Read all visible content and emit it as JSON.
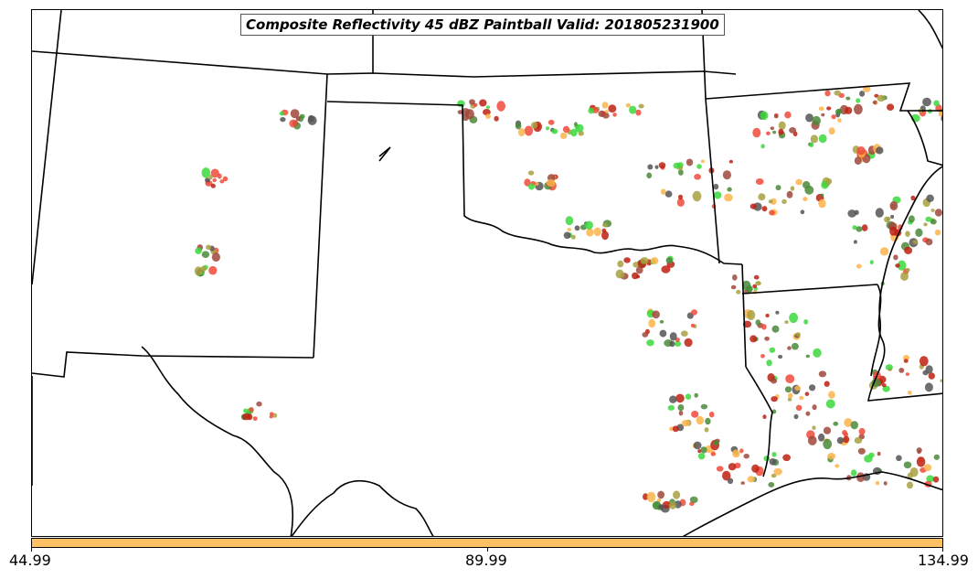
{
  "title": "Composite Reflectivity 45 dBZ Paintball Valid: 201805231900",
  "colorbar": {
    "color": "#fdc064",
    "ticks": [
      "44.99",
      "89.99",
      "134.99"
    ]
  },
  "map": {
    "background": "#ffffff",
    "boundary_color": "#000000"
  },
  "colors": {
    "green": "#3cd83c",
    "olive": "#a8a040",
    "orange": "#fdb44b",
    "red": "#f04a3a",
    "darkred": "#c02010",
    "brownred": "#a0483c",
    "gray": "#555555",
    "darkgreen": "#4a8a3a"
  }
}
